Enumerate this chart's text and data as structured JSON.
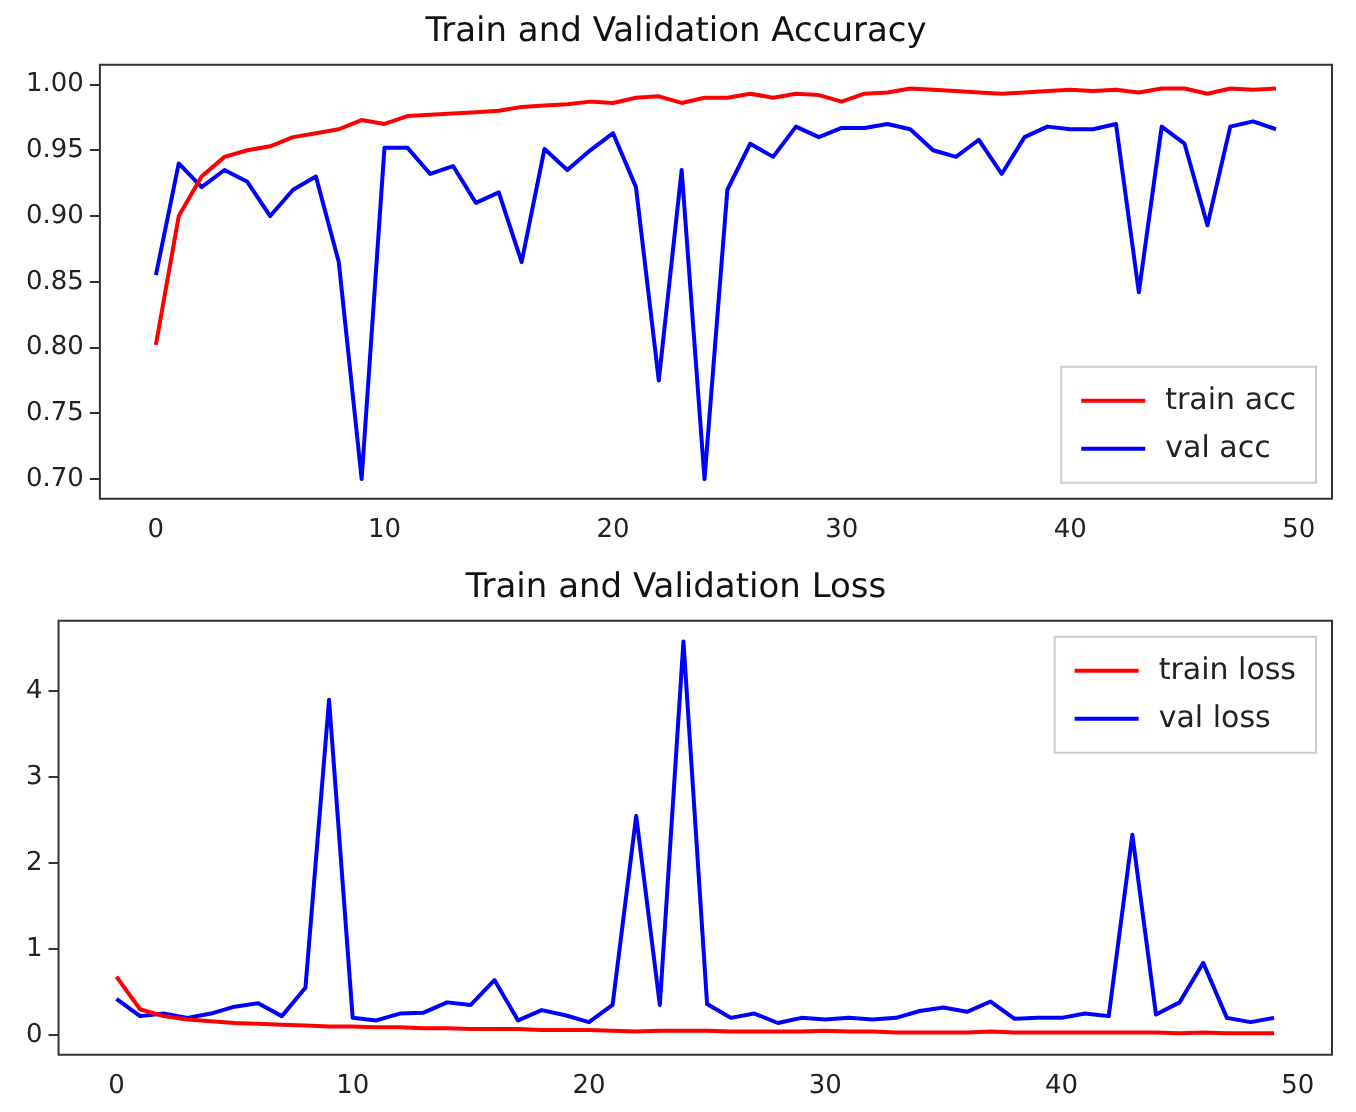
{
  "chart_data": [
    {
      "type": "line",
      "title": "Train and Validation Accuracy",
      "x": [
        0,
        1,
        2,
        3,
        4,
        5,
        6,
        7,
        8,
        9,
        10,
        11,
        12,
        13,
        14,
        15,
        16,
        17,
        18,
        19,
        20,
        21,
        22,
        23,
        24,
        25,
        26,
        27,
        28,
        29,
        30,
        31,
        32,
        33,
        34,
        35,
        36,
        37,
        38,
        39,
        40,
        41,
        42,
        43,
        44,
        45,
        46,
        47,
        48,
        49
      ],
      "series": [
        {
          "name": "train acc",
          "color": "#ff0000",
          "values": [
            0.802,
            0.9,
            0.93,
            0.945,
            0.95,
            0.953,
            0.96,
            0.963,
            0.966,
            0.973,
            0.97,
            0.976,
            0.977,
            0.978,
            0.979,
            0.98,
            0.983,
            0.984,
            0.985,
            0.987,
            0.986,
            0.99,
            0.991,
            0.986,
            0.99,
            0.99,
            0.993,
            0.99,
            0.993,
            0.992,
            0.987,
            0.993,
            0.994,
            0.997,
            0.996,
            0.995,
            0.994,
            0.993,
            0.994,
            0.995,
            0.996,
            0.995,
            0.996,
            0.994,
            0.997,
            0.997,
            0.993,
            0.997,
            0.996,
            0.997
          ]
        },
        {
          "name": "val acc",
          "color": "#0000ff",
          "values": [
            0.855,
            0.94,
            0.922,
            0.935,
            0.926,
            0.9,
            0.92,
            0.93,
            0.865,
            0.7,
            0.952,
            0.952,
            0.932,
            0.938,
            0.91,
            0.918,
            0.865,
            0.951,
            0.935,
            0.95,
            0.963,
            0.922,
            0.775,
            0.935,
            0.7,
            0.92,
            0.955,
            0.945,
            0.968,
            0.96,
            0.967,
            0.967,
            0.97,
            0.966,
            0.95,
            0.945,
            0.958,
            0.932,
            0.96,
            0.968,
            0.966,
            0.966,
            0.97,
            0.842,
            0.968,
            0.955,
            0.893,
            0.968,
            0.972,
            0.966
          ]
        }
      ],
      "xlim": [
        -2.45,
        51.45
      ],
      "xticks": [
        0,
        10,
        20,
        30,
        40,
        50
      ],
      "ylim": [
        0.685,
        1.015
      ],
      "yticks": [
        {
          "value": 0.7,
          "label": "0.70"
        },
        {
          "value": 0.75,
          "label": "0.75"
        },
        {
          "value": 0.8,
          "label": "0.80"
        },
        {
          "value": 0.85,
          "label": "0.85"
        },
        {
          "value": 0.9,
          "label": "0.90"
        },
        {
          "value": 0.95,
          "label": "0.95"
        },
        {
          "value": 1.0,
          "label": "1.00"
        }
      ],
      "legend": "bottom right",
      "grid": false
    },
    {
      "type": "line",
      "title": "Train and Validation Loss",
      "x": [
        0,
        1,
        2,
        3,
        4,
        5,
        6,
        7,
        8,
        9,
        10,
        11,
        12,
        13,
        14,
        15,
        16,
        17,
        18,
        19,
        20,
        21,
        22,
        23,
        24,
        25,
        26,
        27,
        28,
        29,
        30,
        31,
        32,
        33,
        34,
        35,
        36,
        37,
        38,
        39,
        40,
        41,
        42,
        43,
        44,
        45,
        46,
        47,
        48,
        49
      ],
      "series": [
        {
          "name": "train loss",
          "color": "#ff0000",
          "values": [
            0.68,
            0.3,
            0.22,
            0.18,
            0.16,
            0.14,
            0.13,
            0.12,
            0.11,
            0.1,
            0.1,
            0.09,
            0.09,
            0.08,
            0.08,
            0.07,
            0.07,
            0.07,
            0.06,
            0.06,
            0.06,
            0.05,
            0.04,
            0.05,
            0.05,
            0.05,
            0.04,
            0.04,
            0.04,
            0.04,
            0.05,
            0.04,
            0.04,
            0.03,
            0.03,
            0.03,
            0.03,
            0.04,
            0.03,
            0.03,
            0.03,
            0.03,
            0.03,
            0.03,
            0.03,
            0.02,
            0.03,
            0.02,
            0.02,
            0.02
          ]
        },
        {
          "name": "val loss",
          "color": "#0000ff",
          "values": [
            0.42,
            0.22,
            0.25,
            0.2,
            0.25,
            0.33,
            0.37,
            0.22,
            0.55,
            3.9,
            0.2,
            0.17,
            0.25,
            0.26,
            0.38,
            0.35,
            0.64,
            0.17,
            0.29,
            0.23,
            0.15,
            0.35,
            2.55,
            0.35,
            4.58,
            0.36,
            0.2,
            0.25,
            0.14,
            0.2,
            0.18,
            0.2,
            0.18,
            0.2,
            0.28,
            0.32,
            0.27,
            0.39,
            0.19,
            0.2,
            0.2,
            0.25,
            0.22,
            2.33,
            0.24,
            0.38,
            0.84,
            0.2,
            0.15,
            0.2
          ]
        }
      ],
      "xlim": [
        -2.45,
        51.45
      ],
      "xticks": [
        0,
        10,
        20,
        30,
        40,
        50
      ],
      "ylim": [
        -0.23,
        4.82
      ],
      "yticks": [
        0,
        1,
        2,
        3,
        4
      ],
      "legend": "top right",
      "grid": false
    }
  ]
}
